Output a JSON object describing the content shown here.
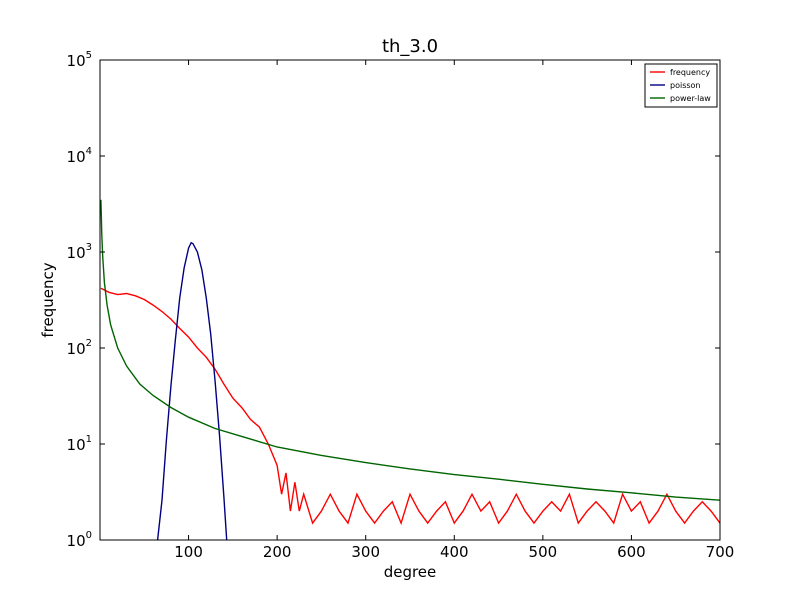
{
  "chart_data": {
    "type": "line",
    "title": "th_3.0",
    "xlabel": "degree",
    "ylabel": "frequency",
    "xlim": [
      0,
      700
    ],
    "ylim": [
      1,
      100000
    ],
    "yscale": "log",
    "xticks": [
      {
        "value": 100,
        "label": "100"
      },
      {
        "value": 200,
        "label": "200"
      },
      {
        "value": 300,
        "label": "300"
      },
      {
        "value": 400,
        "label": "400"
      },
      {
        "value": 500,
        "label": "500"
      },
      {
        "value": 600,
        "label": "600"
      },
      {
        "value": 700,
        "label": "700"
      }
    ],
    "yticks": [
      {
        "value": 1,
        "base": "10",
        "exp": "0"
      },
      {
        "value": 10,
        "base": "10",
        "exp": "1"
      },
      {
        "value": 100,
        "base": "10",
        "exp": "2"
      },
      {
        "value": 1000,
        "base": "10",
        "exp": "3"
      },
      {
        "value": 10000,
        "base": "10",
        "exp": "4"
      },
      {
        "value": 100000,
        "base": "10",
        "exp": "5"
      }
    ],
    "legend": {
      "position": "top-right"
    },
    "series": [
      {
        "name": "frequency",
        "color": "#ff0000",
        "x": [
          1,
          10,
          20,
          30,
          40,
          50,
          60,
          70,
          80,
          90,
          100,
          110,
          120,
          130,
          140,
          150,
          160,
          170,
          180,
          190,
          200,
          205,
          210,
          215,
          220,
          225,
          230,
          240,
          250,
          260,
          270,
          280,
          290,
          300,
          310,
          320,
          330,
          340,
          350,
          360,
          370,
          380,
          390,
          400,
          410,
          420,
          430,
          440,
          450,
          460,
          470,
          480,
          490,
          500,
          510,
          520,
          530,
          540,
          550,
          560,
          570,
          580,
          590,
          600,
          610,
          620,
          630,
          640,
          650,
          660,
          670,
          680,
          690,
          700
        ],
        "y": [
          420,
          380,
          360,
          370,
          350,
          320,
          280,
          240,
          200,
          160,
          130,
          100,
          80,
          60,
          42,
          30,
          24,
          18,
          15,
          10,
          6,
          3,
          5,
          2,
          4,
          2,
          3,
          1.5,
          2,
          3,
          2,
          1.5,
          3,
          2,
          1.5,
          2,
          2.5,
          1.5,
          3,
          2,
          1.5,
          2,
          2.5,
          1.5,
          2,
          3,
          2,
          2.5,
          1.5,
          2,
          3,
          2,
          1.5,
          2,
          2.5,
          2,
          3,
          1.5,
          2,
          2.5,
          2,
          1.5,
          3,
          2,
          2.5,
          1.5,
          2,
          3,
          2,
          1.5,
          2,
          2.5,
          2,
          1.5
        ]
      },
      {
        "name": "poisson",
        "color": "#000080",
        "x": [
          65,
          70,
          75,
          80,
          85,
          90,
          95,
          100,
          103,
          105,
          110,
          115,
          120,
          125,
          130,
          135,
          140,
          143
        ],
        "y": [
          1,
          2.6,
          11,
          40,
          120,
          330,
          680,
          1100,
          1250,
          1220,
          1000,
          650,
          330,
          140,
          45,
          12,
          2.7,
          1
        ]
      },
      {
        "name": "power-law",
        "color": "#006400",
        "x": [
          1,
          2,
          3,
          5,
          8,
          12,
          20,
          30,
          45,
          60,
          80,
          100,
          130,
          160,
          200,
          250,
          300,
          350,
          400,
          450,
          500,
          550,
          600,
          650,
          700
        ],
        "y": [
          3500,
          1500,
          900,
          480,
          280,
          175,
          100,
          65,
          42,
          32,
          24,
          19,
          14.5,
          12,
          9.3,
          7.6,
          6.4,
          5.5,
          4.8,
          4.3,
          3.8,
          3.4,
          3.1,
          2.8,
          2.6
        ]
      }
    ]
  }
}
